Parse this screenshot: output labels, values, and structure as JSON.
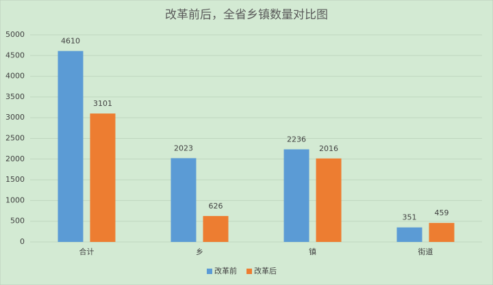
{
  "chart_data": {
    "type": "bar",
    "title": "改革前后，全省乡镇数量对比图",
    "categories": [
      "合计",
      "乡",
      "镇",
      "街道"
    ],
    "series": [
      {
        "name": "改革前",
        "color": "#5b9bd5",
        "values": [
          4610,
          2023,
          2236,
          351
        ]
      },
      {
        "name": "改革后",
        "color": "#ed7d31",
        "values": [
          3101,
          626,
          2016,
          459
        ]
      }
    ],
    "ylim": [
      0,
      5000
    ],
    "yticks": [
      0,
      500,
      1000,
      1500,
      2000,
      2500,
      3000,
      3500,
      4000,
      4500,
      5000
    ],
    "grid": true,
    "legend": "bottom"
  }
}
